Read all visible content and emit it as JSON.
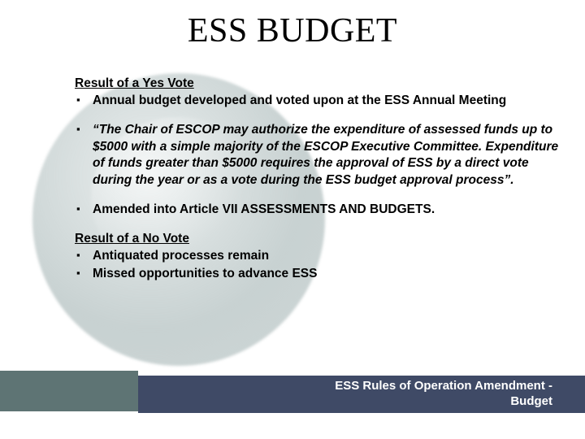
{
  "title": "ESS BUDGET",
  "yes_section": {
    "heading": "Result of a Yes Vote",
    "bullets": [
      "Annual budget developed and voted upon at the ESS Annual Meeting",
      "“The Chair of ESCOP may authorize the expenditure of assessed funds up to $5000 with a simple majority of the ESCOP Executive Committee.  Expenditure of funds greater than $5000 requires the approval of ESS by a direct vote during the year or as a vote during the ESS budget approval process”.",
      "Amended into Article VII ASSESSMENTS AND BUDGETS."
    ]
  },
  "no_section": {
    "heading": "Result of a No Vote",
    "bullets": [
      "Antiquated processes remain",
      "Missed opportunities to advance ESS"
    ]
  },
  "footer": {
    "line1": "ESS Rules of Operation Amendment -",
    "line2": "Budget"
  },
  "colors": {
    "footer_bar": "#3f4a66",
    "footer_left": "#5e7474",
    "title_text": "#000000",
    "body_text": "#000000",
    "footer_text": "#ffffff",
    "background": "#ffffff"
  },
  "typography": {
    "title_fontsize": 42,
    "title_family": "Georgia serif",
    "body_fontsize": 15.5,
    "body_family": "Arial sans-serif",
    "footer_fontsize": 15
  }
}
